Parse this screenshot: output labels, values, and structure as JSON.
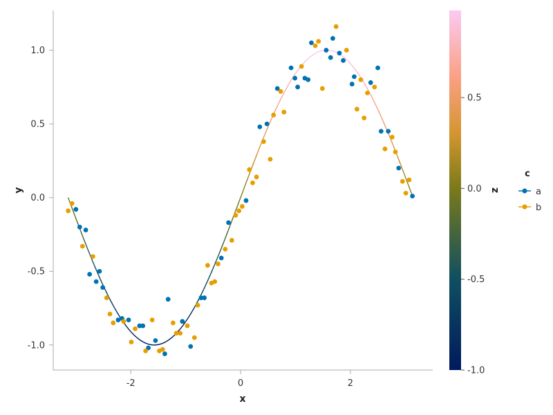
{
  "chart_data": {
    "type": "scatter",
    "xlabel": "x",
    "ylabel": "y",
    "xlim": [
      -3.4,
      3.5
    ],
    "ylim": [
      -1.17,
      1.27
    ],
    "x_ticks": [
      -2,
      0,
      2
    ],
    "x_tick_labels": [
      "-2",
      "0",
      "2"
    ],
    "y_ticks": [
      -1.0,
      -0.5,
      0.0,
      0.5,
      1.0
    ],
    "y_tick_labels": [
      "-1.0",
      "-0.5",
      "0.0",
      "0.5",
      "1.0"
    ],
    "grid": false,
    "legend": {
      "title": "c",
      "placement": "right",
      "entries": [
        {
          "label": "a",
          "color": "#0072b2"
        },
        {
          "label": "b",
          "color": "#e69f00"
        }
      ]
    },
    "colorbar": {
      "label": "z",
      "range": [
        -1.0,
        0.98
      ],
      "ticks": [
        -1.0,
        -0.5,
        0.0,
        0.5
      ],
      "tick_labels": [
        "-1.0",
        "-0.5",
        "0.0",
        "0.5"
      ],
      "stops": [
        {
          "value": -1.0,
          "color": "#001a5e"
        },
        {
          "value": -0.5,
          "color": "#0f4f60"
        },
        {
          "value": 0.0,
          "color": "#7a7a1a"
        },
        {
          "value": 0.3,
          "color": "#d49530"
        },
        {
          "value": 0.6,
          "color": "#fa9f80"
        },
        {
          "value": 0.98,
          "color": "#fbcaf2"
        }
      ]
    },
    "curve": {
      "type": "line",
      "function": "sin(x)",
      "x_range": [
        -3.14,
        3.14
      ],
      "color_by": "z"
    },
    "series": [
      {
        "name": "a",
        "color": "#0072b2",
        "points": [
          [
            -3.0,
            -0.08
          ],
          [
            -2.93,
            -0.2
          ],
          [
            -2.82,
            -0.22
          ],
          [
            -2.75,
            -0.52
          ],
          [
            -2.63,
            -0.57
          ],
          [
            -2.57,
            -0.5
          ],
          [
            -2.51,
            -0.61
          ],
          [
            -2.23,
            -0.83
          ],
          [
            -2.16,
            -0.82
          ],
          [
            -2.04,
            -0.83
          ],
          [
            -1.84,
            -0.87
          ],
          [
            -1.78,
            -0.87
          ],
          [
            -1.68,
            -1.02
          ],
          [
            -1.55,
            -0.97
          ],
          [
            -1.38,
            -1.06
          ],
          [
            -1.32,
            -0.69
          ],
          [
            -1.06,
            -0.84
          ],
          [
            -0.91,
            -1.01
          ],
          [
            -0.72,
            -0.68
          ],
          [
            -0.66,
            -0.68
          ],
          [
            -0.35,
            -0.41
          ],
          [
            -0.22,
            -0.17
          ],
          [
            0.1,
            -0.02
          ],
          [
            0.35,
            0.48
          ],
          [
            0.48,
            0.5
          ],
          [
            0.67,
            0.74
          ],
          [
            0.92,
            0.88
          ],
          [
            0.99,
            0.81
          ],
          [
            1.04,
            0.75
          ],
          [
            1.17,
            0.81
          ],
          [
            1.23,
            0.8
          ],
          [
            1.29,
            1.05
          ],
          [
            1.56,
            1.0
          ],
          [
            1.64,
            0.95
          ],
          [
            1.68,
            1.08
          ],
          [
            1.8,
            0.98
          ],
          [
            1.87,
            0.93
          ],
          [
            2.03,
            0.77
          ],
          [
            2.07,
            0.82
          ],
          [
            2.37,
            0.78
          ],
          [
            2.5,
            0.88
          ],
          [
            2.56,
            0.45
          ],
          [
            2.69,
            0.45
          ],
          [
            2.88,
            0.2
          ],
          [
            3.13,
            0.01
          ]
        ]
      },
      {
        "name": "b",
        "color": "#e69f00",
        "points": [
          [
            -3.14,
            -0.09
          ],
          [
            -3.07,
            -0.04
          ],
          [
            -2.88,
            -0.33
          ],
          [
            -2.69,
            -0.4
          ],
          [
            -2.44,
            -0.68
          ],
          [
            -2.38,
            -0.79
          ],
          [
            -2.32,
            -0.85
          ],
          [
            -2.13,
            -0.84
          ],
          [
            -1.99,
            -0.98
          ],
          [
            -1.92,
            -0.89
          ],
          [
            -1.73,
            -1.04
          ],
          [
            -1.61,
            -0.83
          ],
          [
            -1.48,
            -1.04
          ],
          [
            -1.42,
            -1.03
          ],
          [
            -1.23,
            -0.85
          ],
          [
            -1.17,
            -0.92
          ],
          [
            -1.1,
            -0.92
          ],
          [
            -0.97,
            -0.87
          ],
          [
            -0.84,
            -0.95
          ],
          [
            -0.78,
            -0.73
          ],
          [
            -0.6,
            -0.46
          ],
          [
            -0.53,
            -0.58
          ],
          [
            -0.47,
            -0.57
          ],
          [
            -0.41,
            -0.45
          ],
          [
            -0.28,
            -0.35
          ],
          [
            -0.16,
            -0.29
          ],
          [
            -0.09,
            -0.12
          ],
          [
            -0.03,
            -0.09
          ],
          [
            0.03,
            -0.06
          ],
          [
            0.16,
            0.19
          ],
          [
            0.22,
            0.1
          ],
          [
            0.29,
            0.14
          ],
          [
            0.42,
            0.38
          ],
          [
            0.54,
            0.26
          ],
          [
            0.6,
            0.56
          ],
          [
            0.73,
            0.72
          ],
          [
            0.79,
            0.58
          ],
          [
            1.11,
            0.89
          ],
          [
            1.36,
            1.03
          ],
          [
            1.42,
            1.06
          ],
          [
            1.49,
            0.74
          ],
          [
            1.74,
            1.16
          ],
          [
            1.93,
            1.0
          ],
          [
            2.12,
            0.6
          ],
          [
            2.19,
            0.8
          ],
          [
            2.25,
            0.54
          ],
          [
            2.31,
            0.71
          ],
          [
            2.44,
            0.75
          ],
          [
            2.63,
            0.33
          ],
          [
            2.76,
            0.41
          ],
          [
            2.82,
            0.31
          ],
          [
            2.95,
            0.11
          ],
          [
            3.01,
            0.03
          ],
          [
            3.07,
            0.12
          ]
        ]
      }
    ]
  }
}
